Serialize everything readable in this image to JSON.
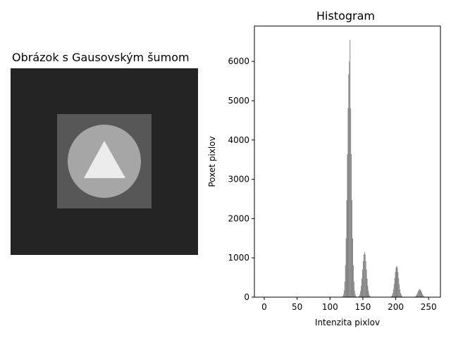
{
  "image_panel": {
    "title": "Obrázok s Gausovským šumom",
    "background_color": "#232323",
    "square_color": "#575757",
    "circle_color": "#a6a6a6",
    "triangle_color": "#ececec"
  },
  "chart_data": {
    "type": "bar",
    "title": "Histogram",
    "xlabel": "Intenzita pixlov",
    "ylabel": "Poxet pixlov",
    "xlim": [
      -15,
      268
    ],
    "ylim": [
      0,
      6900
    ],
    "xticks": [
      0,
      50,
      100,
      150,
      200,
      250
    ],
    "yticks": [
      0,
      1000,
      2000,
      3000,
      4000,
      5000,
      6000
    ],
    "bar_color": "#808080",
    "peaks": [
      {
        "center": 129,
        "height": 6000,
        "sigma": 3
      },
      {
        "center": 152,
        "height": 1150,
        "sigma": 3
      },
      {
        "center": 201,
        "height": 800,
        "sigma": 3
      },
      {
        "center": 236,
        "height": 200,
        "sigma": 3
      }
    ],
    "max_bin": {
      "x": 130,
      "value": 6550
    }
  }
}
